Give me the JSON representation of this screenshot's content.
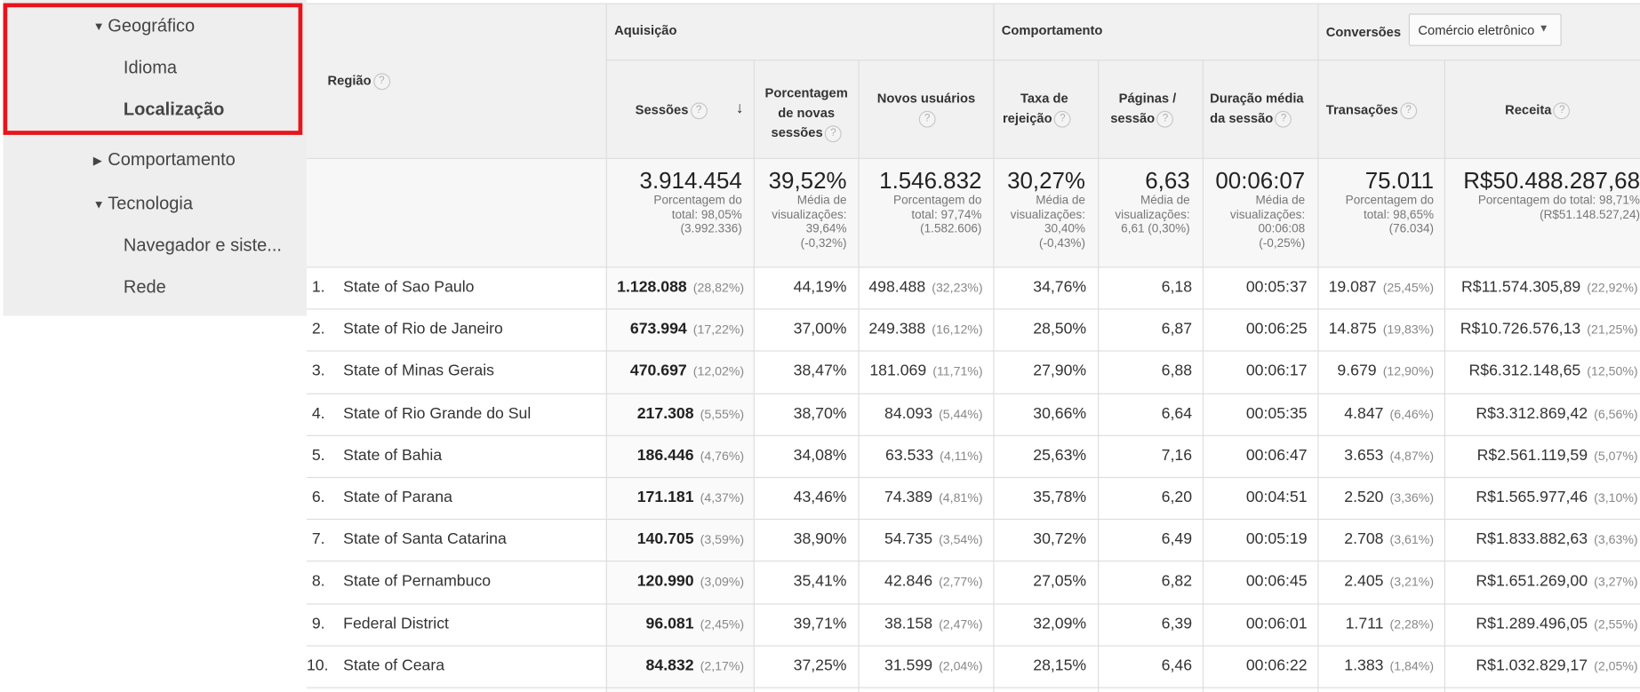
{
  "sidebar": {
    "geografico": "Geográfico",
    "idioma": "Idioma",
    "localizacao": "Localização",
    "comportamento": "Comportamento",
    "tecnologia": "Tecnologia",
    "navegador": "Navegador e siste...",
    "rede": "Rede"
  },
  "header": {
    "regiao": "Região",
    "aquisicao": "Aquisição",
    "comportamento": "Comportamento",
    "conversoes": "Conversões",
    "dropdown_value": "Comércio eletrônico",
    "sort_arrow": "↓",
    "columns": [
      {
        "lines": [
          "Sessões"
        ]
      },
      {
        "lines": [
          "Porcentagem",
          "de novas",
          "sessões"
        ]
      },
      {
        "lines": [
          "Novos usuários"
        ]
      },
      {
        "lines": [
          "Taxa de",
          "rejeição"
        ]
      },
      {
        "lines": [
          "Páginas /",
          "sessão"
        ]
      },
      {
        "lines": [
          "Duração média",
          "da sessão"
        ]
      },
      {
        "lines": [
          "Transações"
        ]
      },
      {
        "lines": [
          "Receita"
        ]
      }
    ]
  },
  "summary": [
    {
      "value": "3.914.454",
      "sub": [
        "Porcentagem do",
        "total: 98,05%",
        "(3.992.336)"
      ]
    },
    {
      "value": "39,52%",
      "sub": [
        "Média de",
        "visualizações:",
        "39,64%",
        "(-0,32%)"
      ]
    },
    {
      "value": "1.546.832",
      "sub": [
        "Porcentagem do",
        "total: 97,74%",
        "(1.582.606)"
      ]
    },
    {
      "value": "30,27%",
      "sub": [
        "Média de",
        "visualizações:",
        "30,40%",
        "(-0,43%)"
      ]
    },
    {
      "value": "6,63",
      "sub": [
        "Média de",
        "visualizações:",
        "6,61 (0,30%)"
      ]
    },
    {
      "value": "00:06:07",
      "sub": [
        "Média de",
        "visualizações:",
        "00:06:08",
        "(-0,25%)"
      ]
    },
    {
      "value": "75.011",
      "sub": [
        "Porcentagem do",
        "total: 98,65%",
        "(76.034)"
      ]
    },
    {
      "value": "R$50.488.287,68",
      "sub": [
        "Porcentagem do total: 98,71%",
        "(R$51.148.527,24)"
      ]
    }
  ],
  "help_icon": "?",
  "rows": [
    {
      "num": "1.",
      "region": "State of Sao Paulo",
      "sessions": "1.128.088",
      "sessions_pct": "(28,82%)",
      "new_pct": "44,19%",
      "new_users": "498.488",
      "new_users_pct": "(32,23%)",
      "bounce": "34,76%",
      "pages": "6,18",
      "duration": "00:05:37",
      "transactions": "19.087",
      "transactions_pct": "(25,45%)",
      "revenue": "R$11.574.305,89",
      "revenue_pct": "(22,92%)"
    },
    {
      "num": "2.",
      "region": "State of Rio de Janeiro",
      "sessions": "673.994",
      "sessions_pct": "(17,22%)",
      "new_pct": "37,00%",
      "new_users": "249.388",
      "new_users_pct": "(16,12%)",
      "bounce": "28,50%",
      "pages": "6,87",
      "duration": "00:06:25",
      "transactions": "14.875",
      "transactions_pct": "(19,83%)",
      "revenue": "R$10.726.576,13",
      "revenue_pct": "(21,25%)"
    },
    {
      "num": "3.",
      "region": "State of Minas Gerais",
      "sessions": "470.697",
      "sessions_pct": "(12,02%)",
      "new_pct": "38,47%",
      "new_users": "181.069",
      "new_users_pct": "(11,71%)",
      "bounce": "27,90%",
      "pages": "6,88",
      "duration": "00:06:17",
      "transactions": "9.679",
      "transactions_pct": "(12,90%)",
      "revenue": "R$6.312.148,65",
      "revenue_pct": "(12,50%)"
    },
    {
      "num": "4.",
      "region": "State of Rio Grande do Sul",
      "sessions": "217.308",
      "sessions_pct": "(5,55%)",
      "new_pct": "38,70%",
      "new_users": "84.093",
      "new_users_pct": "(5,44%)",
      "bounce": "30,66%",
      "pages": "6,64",
      "duration": "00:05:35",
      "transactions": "4.847",
      "transactions_pct": "(6,46%)",
      "revenue": "R$3.312.869,42",
      "revenue_pct": "(6,56%)"
    },
    {
      "num": "5.",
      "region": "State of Bahia",
      "sessions": "186.446",
      "sessions_pct": "(4,76%)",
      "new_pct": "34,08%",
      "new_users": "63.533",
      "new_users_pct": "(4,11%)",
      "bounce": "25,63%",
      "pages": "7,16",
      "duration": "00:06:47",
      "transactions": "3.653",
      "transactions_pct": "(4,87%)",
      "revenue": "R$2.561.119,59",
      "revenue_pct": "(5,07%)"
    },
    {
      "num": "6.",
      "region": "State of Parana",
      "sessions": "171.181",
      "sessions_pct": "(4,37%)",
      "new_pct": "43,46%",
      "new_users": "74.389",
      "new_users_pct": "(4,81%)",
      "bounce": "35,78%",
      "pages": "6,20",
      "duration": "00:04:51",
      "transactions": "2.520",
      "transactions_pct": "(3,36%)",
      "revenue": "R$1.565.977,46",
      "revenue_pct": "(3,10%)"
    },
    {
      "num": "7.",
      "region": "State of Santa Catarina",
      "sessions": "140.705",
      "sessions_pct": "(3,59%)",
      "new_pct": "38,90%",
      "new_users": "54.735",
      "new_users_pct": "(3,54%)",
      "bounce": "30,72%",
      "pages": "6,49",
      "duration": "00:05:19",
      "transactions": "2.708",
      "transactions_pct": "(3,61%)",
      "revenue": "R$1.833.882,63",
      "revenue_pct": "(3,63%)"
    },
    {
      "num": "8.",
      "region": "State of Pernambuco",
      "sessions": "120.990",
      "sessions_pct": "(3,09%)",
      "new_pct": "35,41%",
      "new_users": "42.846",
      "new_users_pct": "(2,77%)",
      "bounce": "27,05%",
      "pages": "6,82",
      "duration": "00:06:45",
      "transactions": "2.405",
      "transactions_pct": "(3,21%)",
      "revenue": "R$1.651.269,00",
      "revenue_pct": "(3,27%)"
    },
    {
      "num": "9.",
      "region": "Federal District",
      "sessions": "96.081",
      "sessions_pct": "(2,45%)",
      "new_pct": "39,71%",
      "new_users": "38.158",
      "new_users_pct": "(2,47%)",
      "bounce": "32,09%",
      "pages": "6,39",
      "duration": "00:06:01",
      "transactions": "1.711",
      "transactions_pct": "(2,28%)",
      "revenue": "R$1.289.496,05",
      "revenue_pct": "(2,55%)"
    },
    {
      "num": "10.",
      "region": "State of Ceara",
      "sessions": "84.832",
      "sessions_pct": "(2,17%)",
      "new_pct": "37,25%",
      "new_users": "31.599",
      "new_users_pct": "(2,04%)",
      "bounce": "28,15%",
      "pages": "6,46",
      "duration": "00:06:22",
      "transactions": "1.383",
      "transactions_pct": "(1,84%)",
      "revenue": "R$1.032.829,17",
      "revenue_pct": "(2,05%)"
    }
  ]
}
